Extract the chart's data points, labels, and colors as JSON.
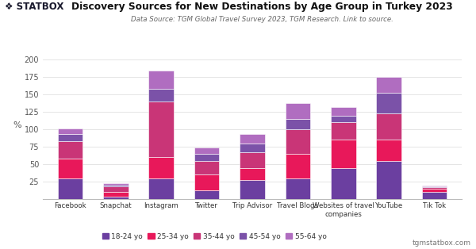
{
  "title": "Discovery Sources for New Destinations by Age Group in Turkey 2023",
  "subtitle": "Data Source: TGM Global Travel Survey 2023, TGM Research. Link to source.",
  "categories": [
    "Facebook",
    "Snapchat",
    "Instagram",
    "Twitter",
    "Trip Advisor",
    "Travel Blogs",
    "Websites of travel\ncompanies",
    "YouTube",
    "Tik Tok"
  ],
  "legend_labels": [
    "18-24 yo",
    "25-34 yo",
    "35-44 yo",
    "45-54 yo",
    "55-64 yo"
  ],
  "plot_colors": [
    "#6b3fa0",
    "#e8185a",
    "#c93577",
    "#7b52a8",
    "#b06dc0"
  ],
  "segments": {
    "18-24 yo": [
      30,
      4,
      30,
      13,
      27,
      30,
      45,
      55,
      10
    ],
    "25-34 yo": [
      28,
      6,
      30,
      22,
      18,
      35,
      40,
      30,
      5
    ],
    "35-44 yo": [
      25,
      8,
      80,
      20,
      22,
      35,
      25,
      38,
      2
    ],
    "45-54 yo": [
      10,
      3,
      18,
      10,
      13,
      15,
      10,
      30,
      1
    ],
    "55-64 yo": [
      8,
      2,
      27,
      9,
      13,
      23,
      12,
      22,
      1
    ]
  },
  "ylim": [
    0,
    200
  ],
  "yticks": [
    0,
    25,
    50,
    75,
    100,
    125,
    150,
    175,
    200
  ],
  "ylabel": "%",
  "background_color": "#ffffff",
  "footer_text": "tgmstatbox.com",
  "bar_width": 0.55
}
